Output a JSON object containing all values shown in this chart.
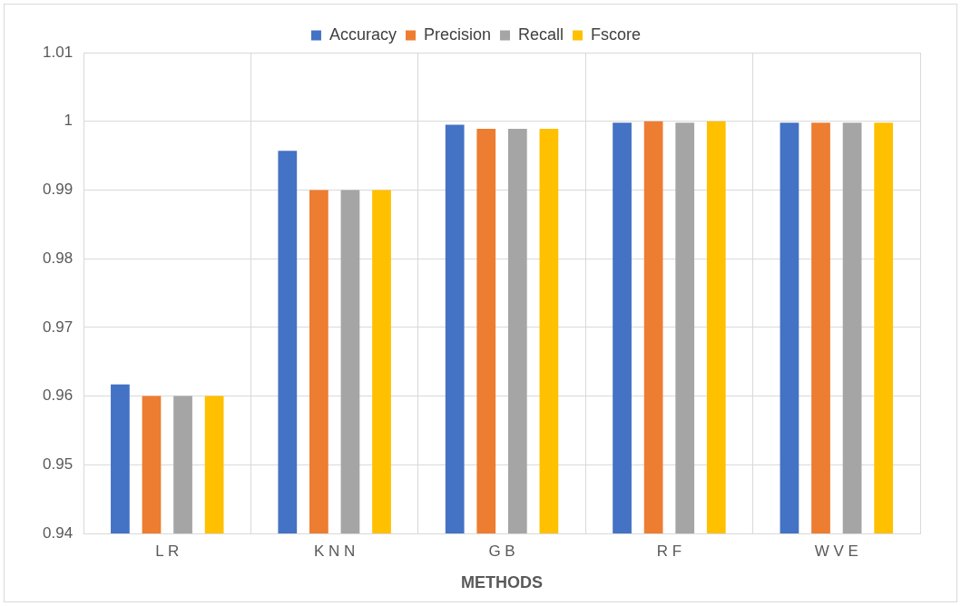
{
  "chart_data": {
    "type": "bar",
    "xlabel": "METHODS",
    "categories": [
      "L R",
      "K N N",
      "G B",
      "R F",
      "W V E"
    ],
    "series": [
      {
        "name": "Accuracy",
        "color": "#4472c4",
        "values": [
          0.9617,
          0.9957,
          0.9995,
          0.9998,
          0.9998
        ]
      },
      {
        "name": "Precision",
        "color": "#ed7d31",
        "values": [
          0.96,
          0.99,
          0.9989,
          1.0,
          0.9998
        ]
      },
      {
        "name": "Recall",
        "color": "#a5a5a5",
        "values": [
          0.96,
          0.99,
          0.9989,
          0.9998,
          0.9998
        ]
      },
      {
        "name": "Fscore",
        "color": "#ffc000",
        "values": [
          0.96,
          0.99,
          0.9989,
          1.0,
          0.9998
        ]
      }
    ],
    "ylim": [
      0.94,
      1.01
    ],
    "yticks": [
      0.94,
      0.95,
      0.96,
      0.97,
      0.98,
      0.99,
      1,
      1.01
    ],
    "grid": true,
    "legend": "top"
  }
}
